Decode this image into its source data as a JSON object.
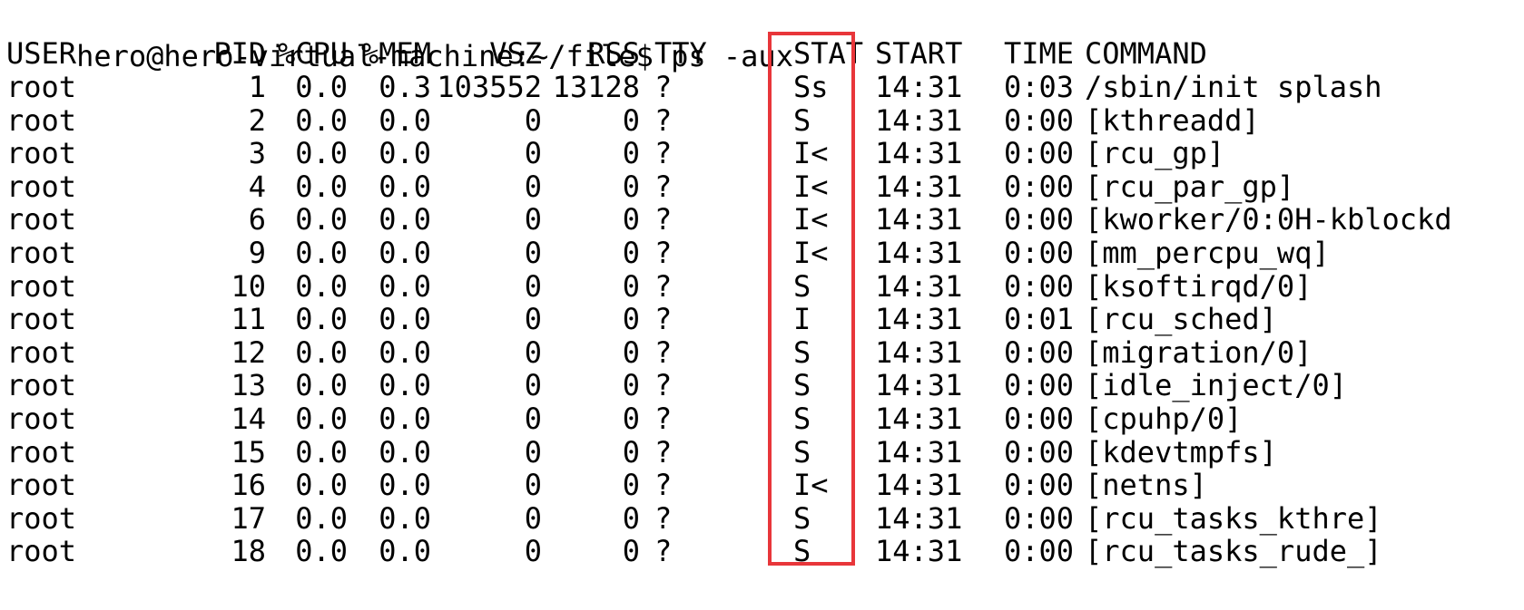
{
  "terminal": {
    "prompt": "hero@hero-virtual-machine:~/file$",
    "command": "ps -aux"
  },
  "highlight_color": "#e8363a",
  "table": {
    "headers": {
      "user": "USER",
      "pid": "PID",
      "cpu": "%CPU",
      "mem": "%MEM",
      "vsz": "VSZ",
      "rss": "RSS",
      "tty": "TTY",
      "stat": "STAT",
      "start": "START",
      "time": "TIME",
      "command": "COMMAND"
    },
    "rows": [
      {
        "user": "root",
        "pid": "1",
        "cpu": "0.0",
        "mem": "0.3",
        "vsz": "103552",
        "rss": "13128",
        "tty": "?",
        "stat": "Ss",
        "start": "14:31",
        "time": "0:03",
        "command": "/sbin/init splash"
      },
      {
        "user": "root",
        "pid": "2",
        "cpu": "0.0",
        "mem": "0.0",
        "vsz": "0",
        "rss": "0",
        "tty": "?",
        "stat": "S",
        "start": "14:31",
        "time": "0:00",
        "command": "[kthreadd]"
      },
      {
        "user": "root",
        "pid": "3",
        "cpu": "0.0",
        "mem": "0.0",
        "vsz": "0",
        "rss": "0",
        "tty": "?",
        "stat": "I<",
        "start": "14:31",
        "time": "0:00",
        "command": "[rcu_gp]"
      },
      {
        "user": "root",
        "pid": "4",
        "cpu": "0.0",
        "mem": "0.0",
        "vsz": "0",
        "rss": "0",
        "tty": "?",
        "stat": "I<",
        "start": "14:31",
        "time": "0:00",
        "command": "[rcu_par_gp]"
      },
      {
        "user": "root",
        "pid": "6",
        "cpu": "0.0",
        "mem": "0.0",
        "vsz": "0",
        "rss": "0",
        "tty": "?",
        "stat": "I<",
        "start": "14:31",
        "time": "0:00",
        "command": "[kworker/0:0H-kblockd"
      },
      {
        "user": "root",
        "pid": "9",
        "cpu": "0.0",
        "mem": "0.0",
        "vsz": "0",
        "rss": "0",
        "tty": "?",
        "stat": "I<",
        "start": "14:31",
        "time": "0:00",
        "command": "[mm_percpu_wq]"
      },
      {
        "user": "root",
        "pid": "10",
        "cpu": "0.0",
        "mem": "0.0",
        "vsz": "0",
        "rss": "0",
        "tty": "?",
        "stat": "S",
        "start": "14:31",
        "time": "0:00",
        "command": "[ksoftirqd/0]"
      },
      {
        "user": "root",
        "pid": "11",
        "cpu": "0.0",
        "mem": "0.0",
        "vsz": "0",
        "rss": "0",
        "tty": "?",
        "stat": "I",
        "start": "14:31",
        "time": "0:01",
        "command": "[rcu_sched]"
      },
      {
        "user": "root",
        "pid": "12",
        "cpu": "0.0",
        "mem": "0.0",
        "vsz": "0",
        "rss": "0",
        "tty": "?",
        "stat": "S",
        "start": "14:31",
        "time": "0:00",
        "command": "[migration/0]"
      },
      {
        "user": "root",
        "pid": "13",
        "cpu": "0.0",
        "mem": "0.0",
        "vsz": "0",
        "rss": "0",
        "tty": "?",
        "stat": "S",
        "start": "14:31",
        "time": "0:00",
        "command": "[idle_inject/0]"
      },
      {
        "user": "root",
        "pid": "14",
        "cpu": "0.0",
        "mem": "0.0",
        "vsz": "0",
        "rss": "0",
        "tty": "?",
        "stat": "S",
        "start": "14:31",
        "time": "0:00",
        "command": "[cpuhp/0]"
      },
      {
        "user": "root",
        "pid": "15",
        "cpu": "0.0",
        "mem": "0.0",
        "vsz": "0",
        "rss": "0",
        "tty": "?",
        "stat": "S",
        "start": "14:31",
        "time": "0:00",
        "command": "[kdevtmpfs]"
      },
      {
        "user": "root",
        "pid": "16",
        "cpu": "0.0",
        "mem": "0.0",
        "vsz": "0",
        "rss": "0",
        "tty": "?",
        "stat": "I<",
        "start": "14:31",
        "time": "0:00",
        "command": "[netns]"
      },
      {
        "user": "root",
        "pid": "17",
        "cpu": "0.0",
        "mem": "0.0",
        "vsz": "0",
        "rss": "0",
        "tty": "?",
        "stat": "S",
        "start": "14:31",
        "time": "0:00",
        "command": "[rcu_tasks_kthre]"
      },
      {
        "user": "root",
        "pid": "18",
        "cpu": "0.0",
        "mem": "0.0",
        "vsz": "0",
        "rss": "0",
        "tty": "?",
        "stat": "S",
        "start": "14:31",
        "time": "0:00",
        "command": "[rcu_tasks_rude_]"
      }
    ]
  }
}
